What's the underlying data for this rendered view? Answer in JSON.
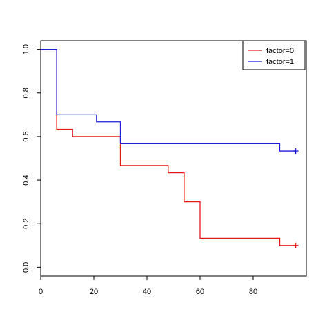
{
  "chart_data": {
    "type": "line",
    "subtype": "step",
    "title": "",
    "xlabel": "",
    "ylabel": "",
    "xlim": [
      0,
      100
    ],
    "ylim": [
      -0.04,
      1.04
    ],
    "x_ticks": [
      0,
      20,
      40,
      60,
      80
    ],
    "y_ticks": [
      0.0,
      0.2,
      0.4,
      0.6,
      0.8,
      1.0
    ],
    "x_tick_labels": [
      "0",
      "20",
      "40",
      "60",
      "80"
    ],
    "y_tick_labels": [
      "0.0",
      "0.2",
      "0.4",
      "0.6",
      "0.8",
      "1.0"
    ],
    "grid": false,
    "legend_position": "top-right",
    "series": [
      {
        "name": "factor=0",
        "color": "#e31a1c",
        "x": [
          0,
          6,
          12,
          30,
          48,
          54,
          60,
          90,
          96
        ],
        "y": [
          1.0,
          0.633,
          0.6,
          0.467,
          0.433,
          0.3,
          0.133,
          0.1,
          0.1
        ],
        "censor_x": [
          96
        ],
        "censor_y": [
          0.1
        ]
      },
      {
        "name": "factor=1",
        "color": "#1f1fd6",
        "x": [
          0,
          6,
          21,
          30,
          90,
          96
        ],
        "y": [
          1.0,
          0.7,
          0.667,
          0.567,
          0.533,
          0.533
        ],
        "censor_x": [
          96
        ],
        "censor_y": [
          0.533
        ]
      }
    ]
  }
}
